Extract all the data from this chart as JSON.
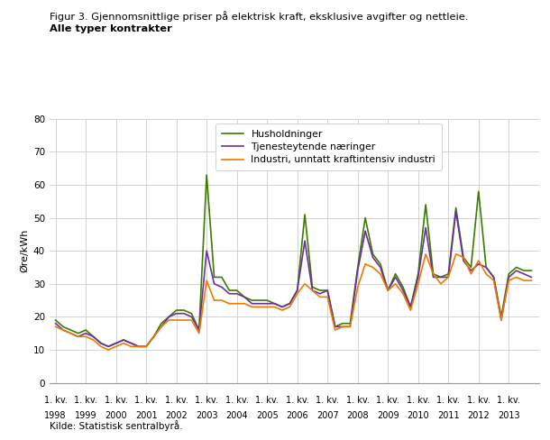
{
  "title_line1": "Figur 3. Gjennomsnittlige priser på elektrisk kraft, eksklusive avgifter og nettleie.",
  "title_line2": "Alle typer kontrakter",
  "ylabel": "Øre/kWh",
  "source": "Kilde: Statistisk sentralbyrå.",
  "ylim": [
    0,
    80
  ],
  "yticks": [
    0,
    10,
    20,
    30,
    40,
    50,
    60,
    70,
    80
  ],
  "years": [
    1998,
    1999,
    2000,
    2001,
    2002,
    2003,
    2004,
    2005,
    2006,
    2007,
    2008,
    2009,
    2010,
    2011,
    2012,
    2013
  ],
  "legend": [
    "Husholdninger",
    "Tjenesteytende næringer",
    "Industri, unntatt kraftintensiv industri"
  ],
  "colors": [
    "#3a7c00",
    "#6b2fa0",
    "#f07800"
  ],
  "husholdninger": [
    19,
    17,
    16,
    15,
    16,
    14,
    12,
    11,
    12,
    13,
    12,
    11,
    11,
    14,
    18,
    20,
    22,
    22,
    21,
    16,
    63,
    32,
    32,
    28,
    28,
    26,
    25,
    25,
    25,
    24,
    23,
    24,
    28,
    51,
    29,
    28,
    28,
    17,
    18,
    18,
    35,
    50,
    39,
    36,
    28,
    33,
    29,
    23,
    33,
    54,
    33,
    32,
    33,
    53,
    38,
    35,
    58,
    35,
    32,
    20,
    33,
    35,
    34,
    34
  ],
  "tjenesteytende": [
    18,
    16,
    15,
    14,
    15,
    14,
    12,
    11,
    12,
    13,
    12,
    11,
    11,
    14,
    17,
    20,
    21,
    21,
    20,
    16,
    40,
    30,
    29,
    27,
    27,
    26,
    24,
    24,
    24,
    24,
    23,
    24,
    28,
    43,
    28,
    27,
    28,
    17,
    17,
    17,
    34,
    46,
    38,
    35,
    28,
    32,
    28,
    23,
    32,
    47,
    32,
    32,
    32,
    52,
    37,
    34,
    36,
    35,
    32,
    19,
    32,
    34,
    33,
    32
  ],
  "industri": [
    17,
    16,
    15,
    14,
    14,
    13,
    11,
    10,
    11,
    12,
    11,
    11,
    11,
    14,
    17,
    19,
    19,
    19,
    19,
    15,
    31,
    25,
    25,
    24,
    24,
    24,
    23,
    23,
    23,
    23,
    22,
    23,
    27,
    30,
    28,
    26,
    26,
    16,
    17,
    17,
    29,
    36,
    35,
    33,
    28,
    30,
    27,
    22,
    30,
    39,
    33,
    30,
    32,
    39,
    38,
    33,
    37,
    33,
    31,
    19,
    31,
    32,
    31,
    31
  ]
}
